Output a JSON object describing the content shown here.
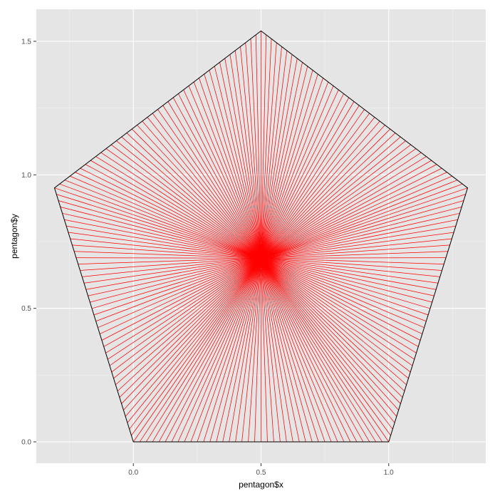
{
  "chart_data": {
    "type": "line",
    "title": "",
    "xlabel": "pentagon$x",
    "ylabel": "pentagon$y",
    "xlim": [
      -0.38,
      1.38
    ],
    "ylim": [
      -0.08,
      1.62
    ],
    "x_ticks": [
      {
        "value": 0.0,
        "label": "0.0"
      },
      {
        "value": 0.5,
        "label": "0.5"
      },
      {
        "value": 1.0,
        "label": "1.0"
      }
    ],
    "y_ticks": [
      {
        "value": 0.0,
        "label": "0.0"
      },
      {
        "value": 0.5,
        "label": "0.5"
      },
      {
        "value": 1.0,
        "label": "1.0"
      },
      {
        "value": 1.5,
        "label": "1.5"
      }
    ],
    "grid": true,
    "legend": "none",
    "pentagon_vertices": [
      {
        "x": 0.0,
        "y": 0.0
      },
      {
        "x": 1.0,
        "y": 0.0
      },
      {
        "x": 1.309,
        "y": 0.951
      },
      {
        "x": 0.5,
        "y": 1.539
      },
      {
        "x": -0.309,
        "y": 0.951
      }
    ],
    "rays": {
      "center": {
        "x": 0.5,
        "y": 0.688
      },
      "points_per_side": 40,
      "color": "#ff0000"
    },
    "colors": {
      "panel": "#e5e5e5",
      "grid_major": "#ffffff",
      "grid_minor": "#f2f2f2",
      "outline": "#000000",
      "ray": "#ff0000"
    }
  }
}
